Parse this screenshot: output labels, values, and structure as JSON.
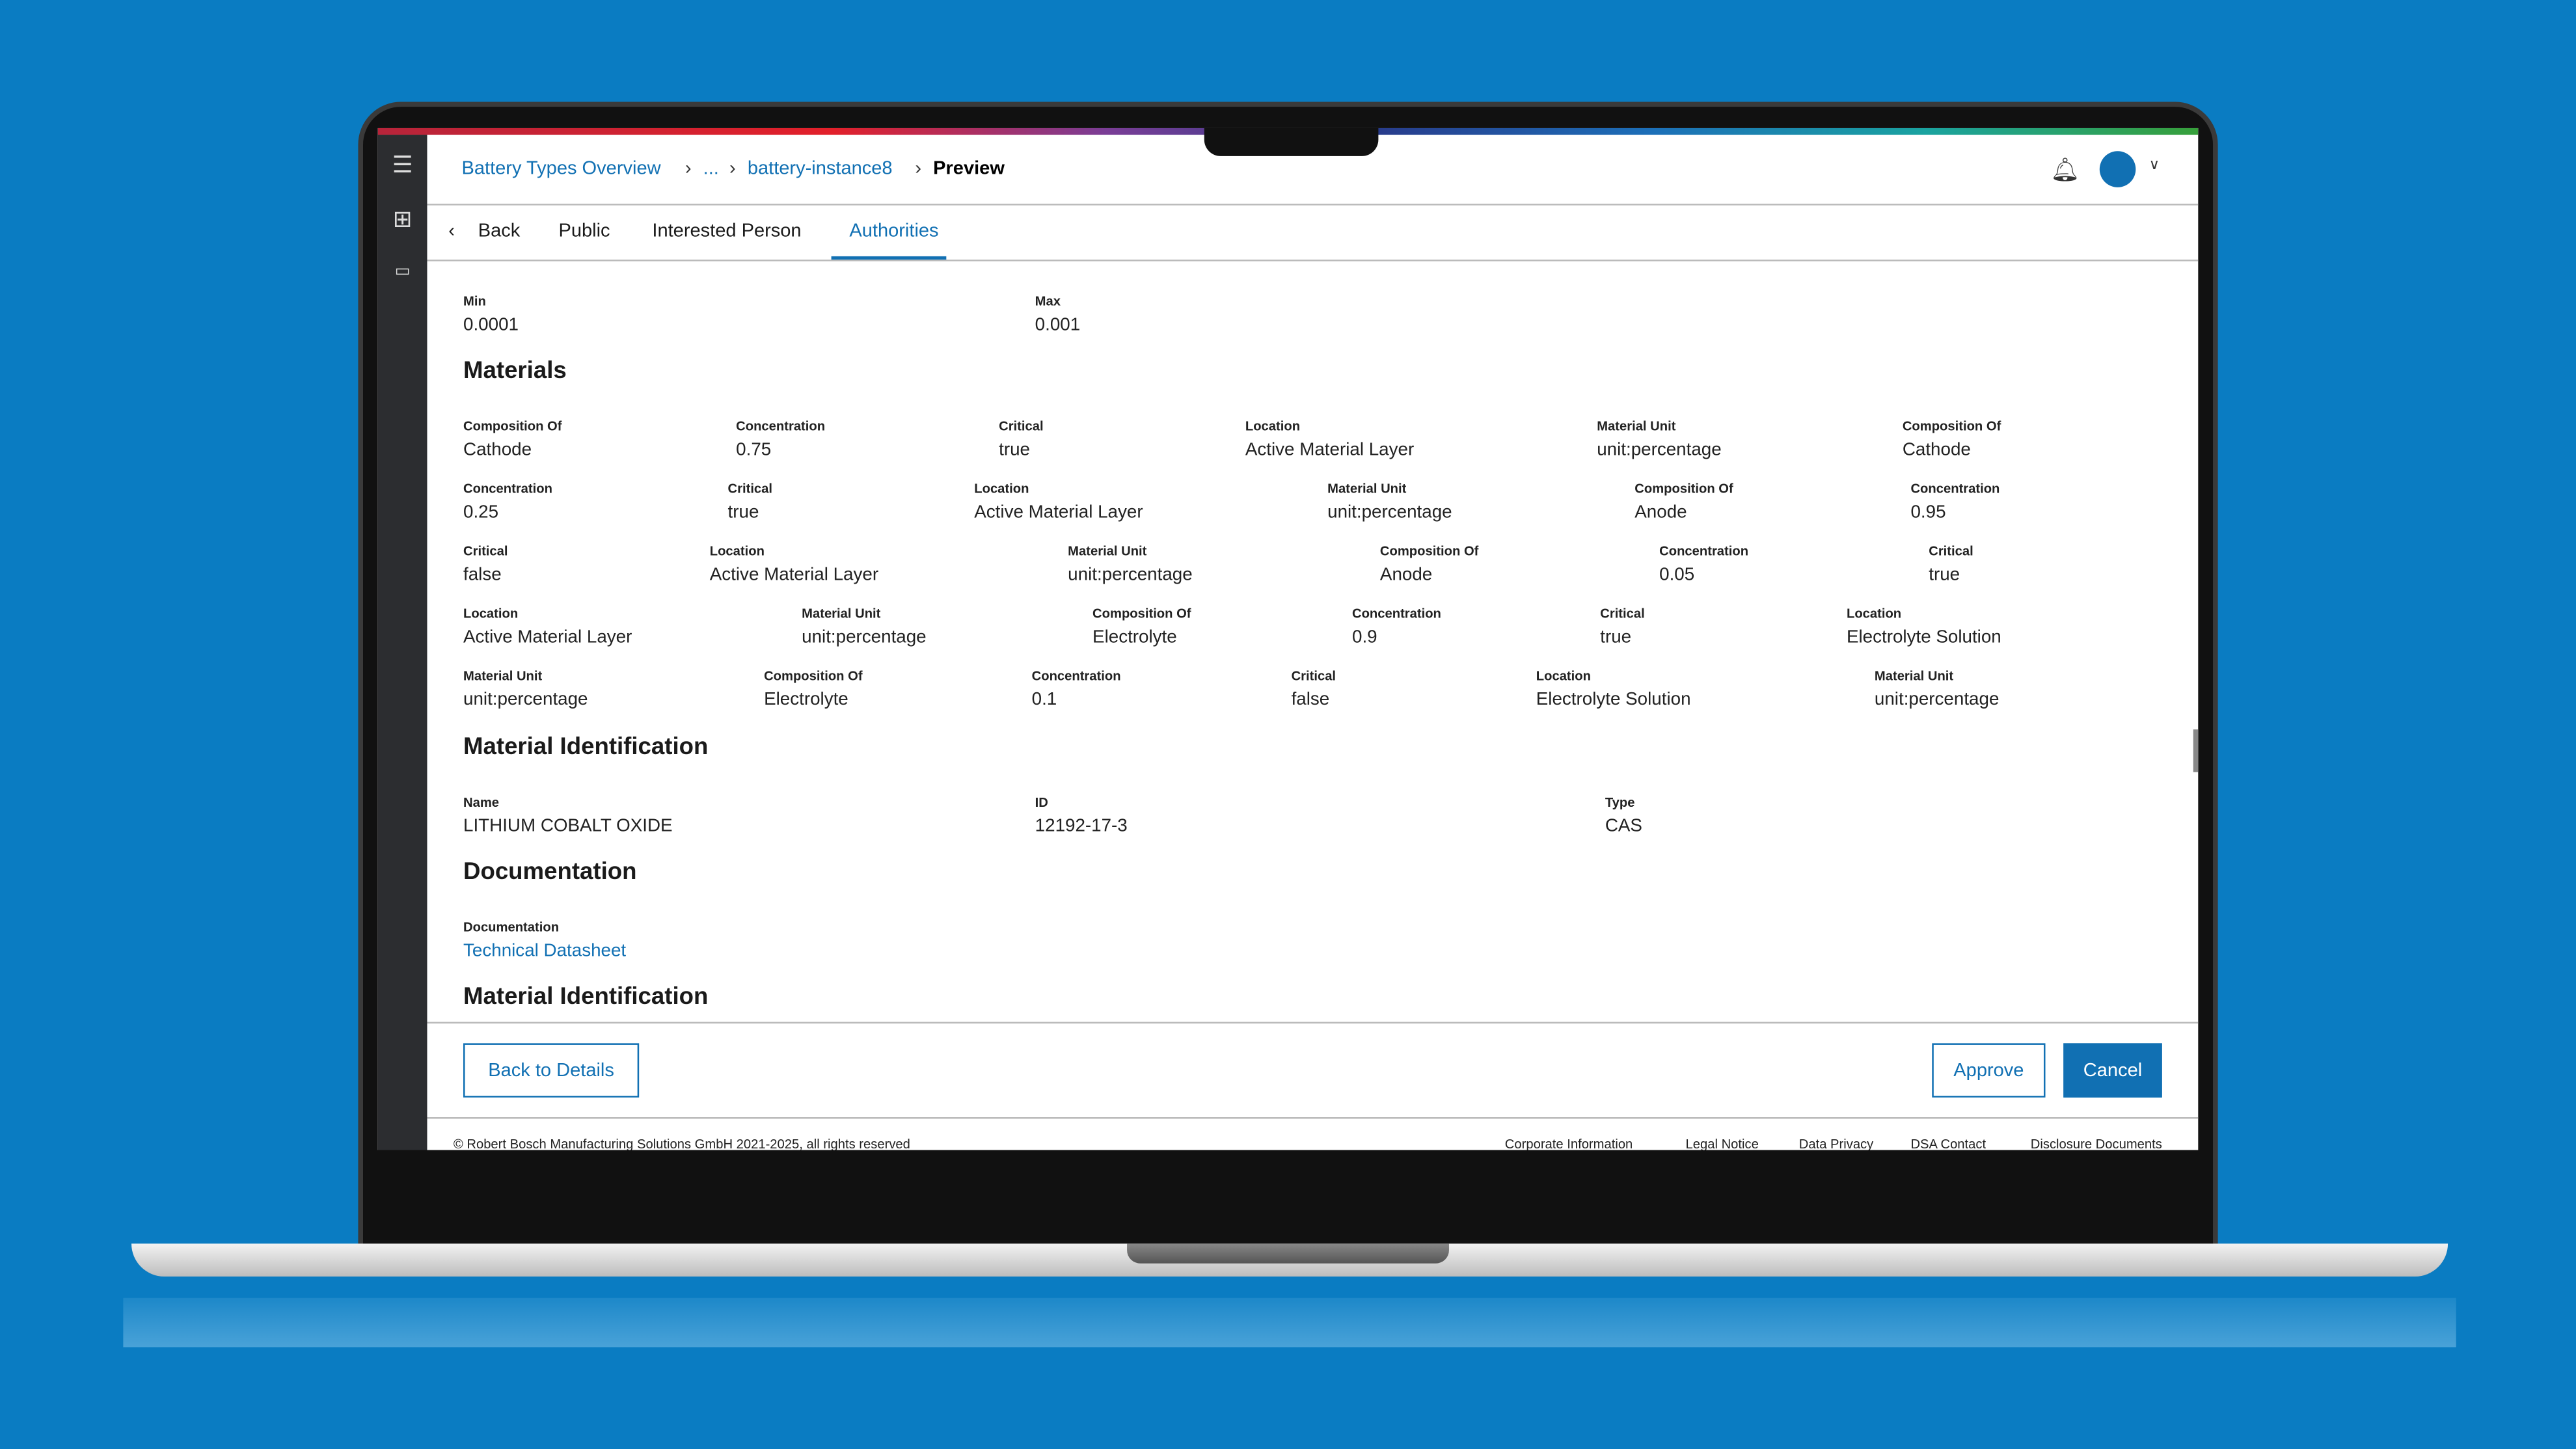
{
  "breadcrumb": [
    {
      "label": "Battery Types Overview"
    },
    {
      "label": "..."
    },
    {
      "label": "battery-instance8"
    },
    {
      "label": "Preview"
    }
  ],
  "tabs": {
    "back": "Back",
    "items": [
      "Public",
      "Interested Person",
      "Authorities"
    ],
    "active": "Authorities"
  },
  "range": {
    "min_label": "Min",
    "min": "0.0001",
    "max_label": "Max",
    "max": "0.001"
  },
  "materials": {
    "title": "Materials",
    "rows": [
      [
        [
          "Composition Of",
          "Cathode"
        ],
        [
          "Concentration",
          "0.75"
        ],
        [
          "Critical",
          "true"
        ],
        [
          "Location",
          "Active Material Layer"
        ],
        [
          "Material Unit",
          "unit:percentage"
        ],
        [
          "Composition Of",
          "Cathode"
        ]
      ],
      [
        [
          "Concentration",
          "0.25"
        ],
        [
          "Critical",
          "true"
        ],
        [
          "Location",
          "Active Material Layer"
        ],
        [
          "Material Unit",
          "unit:percentage"
        ],
        [
          "Composition Of",
          "Anode"
        ],
        [
          "Concentration",
          "0.95"
        ]
      ],
      [
        [
          "Critical",
          "false"
        ],
        [
          "Location",
          "Active Material Layer"
        ],
        [
          "Material Unit",
          "unit:percentage"
        ],
        [
          "Composition Of",
          "Anode"
        ],
        [
          "Concentration",
          "0.05"
        ],
        [
          "Critical",
          "true"
        ]
      ],
      [
        [
          "Location",
          "Active Material Layer"
        ],
        [
          "Material Unit",
          "unit:percentage"
        ],
        [
          "Composition Of",
          "Electrolyte"
        ],
        [
          "Concentration",
          "0.9"
        ],
        [
          "Critical",
          "true"
        ],
        [
          "Location",
          "Electrolyte Solution"
        ]
      ],
      [
        [
          "Material Unit",
          "unit:percentage"
        ],
        [
          "Composition Of",
          "Electrolyte"
        ],
        [
          "Concentration",
          "0.1"
        ],
        [
          "Critical",
          "false"
        ],
        [
          "Location",
          "Electrolyte Solution"
        ],
        [
          "Material Unit",
          "unit:percentage"
        ]
      ]
    ]
  },
  "identification": {
    "title": "Material Identification",
    "name_label": "Name",
    "name": "LITHIUM COBALT OXIDE",
    "id_label": "ID",
    "id": "12192-17-3",
    "type_label": "Type",
    "type": "CAS"
  },
  "documentation": {
    "title": "Documentation",
    "label": "Documentation",
    "link": "Technical Datasheet"
  },
  "identification2": {
    "title": "Material Identification"
  },
  "actions": {
    "back_to_details": "Back to Details",
    "approve": "Approve",
    "cancel": "Cancel"
  },
  "footer": {
    "copyright": "© Robert Bosch Manufacturing Solutions GmbH 2021-2025, all rights reserved",
    "links": [
      "Corporate Information",
      "Legal Notice",
      "Data Privacy",
      "DSA Contact",
      "Disclosure Documents"
    ]
  },
  "colors": {
    "accent": "#1170b3",
    "background": "#0a7cc2"
  },
  "icons": {
    "menu": "menu-icon",
    "apps": "grid-icon",
    "battery": "battery-icon",
    "bell": "bell-icon",
    "avatar": "user-avatar",
    "chevron": "chevron-down-icon"
  }
}
